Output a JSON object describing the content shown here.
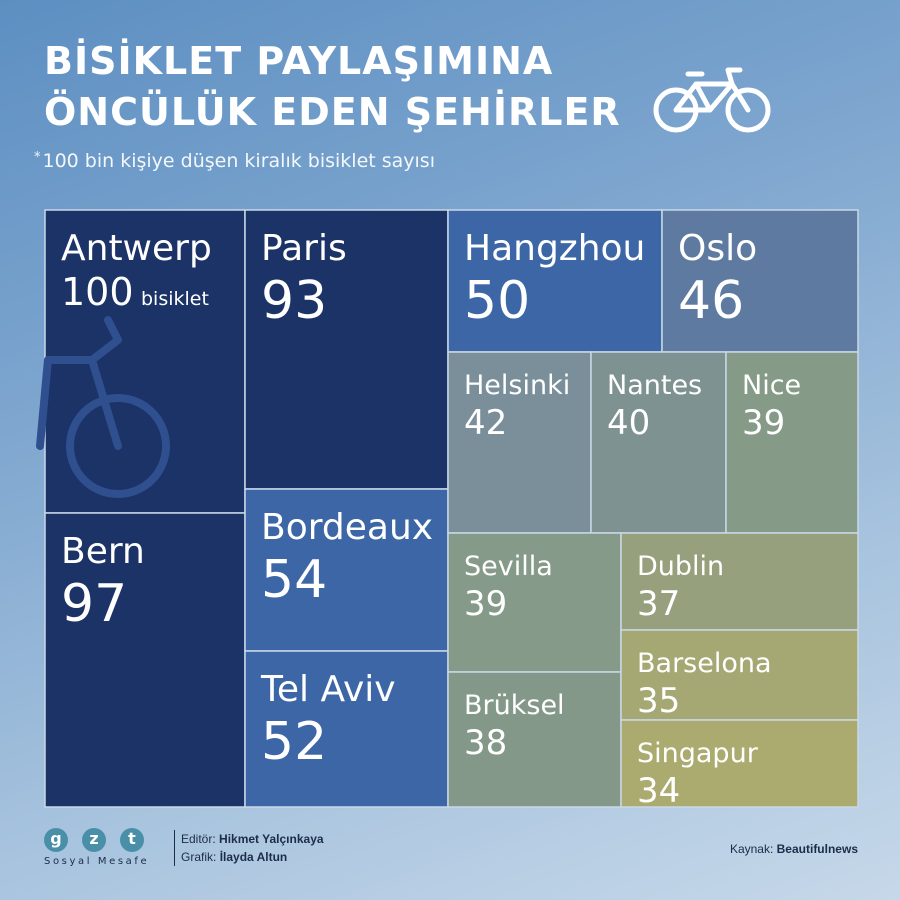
{
  "header": {
    "title_line1": "BİSİKLET PAYLAŞIMINA",
    "title_line2": "ÖNCÜLÜK EDEN ŞEHİRLER",
    "subtitle_mark": "*",
    "subtitle": "100 bin kişiye düşen kiralık bisiklet sayısı"
  },
  "chart_data": {
    "type": "treemap",
    "unit_label": "bisiklet",
    "items": [
      {
        "city": "Antwerp",
        "value": 100,
        "color": "#1b3366"
      },
      {
        "city": "Bern",
        "value": 97,
        "color": "#1b3366"
      },
      {
        "city": "Paris",
        "value": 93,
        "color": "#1b3366"
      },
      {
        "city": "Bordeaux",
        "value": 54,
        "color": "#3c66a6"
      },
      {
        "city": "Tel Aviv",
        "value": 52,
        "color": "#3c66a6"
      },
      {
        "city": "Hangzhou",
        "value": 50,
        "color": "#3c66a6"
      },
      {
        "city": "Oslo",
        "value": 46,
        "color": "#5f7aa0"
      },
      {
        "city": "Helsinki",
        "value": 42,
        "color": "#7a8f99"
      },
      {
        "city": "Nantes",
        "value": 40,
        "color": "#7f9292"
      },
      {
        "city": "Nice",
        "value": 39,
        "color": "#869a88"
      },
      {
        "city": "Sevilla",
        "value": 39,
        "color": "#859a88"
      },
      {
        "city": "Brüksel",
        "value": 38,
        "color": "#839888"
      },
      {
        "city": "Dublin",
        "value": 37,
        "color": "#97a07c"
      },
      {
        "city": "Barselona",
        "value": 35,
        "color": "#a5a873"
      },
      {
        "city": "Singapur",
        "value": 34,
        "color": "#abab70"
      }
    ]
  },
  "footer": {
    "logo_letters": [
      "g",
      "z",
      "t"
    ],
    "logo_text": "Sosyal Mesafe",
    "editor_label": "Editör:",
    "editor_name": "Hikmet Yalçınkaya",
    "graphic_label": "Grafik:",
    "graphic_name": "İlayda Altun",
    "source_label": "Kaynak:",
    "source_name": "Beautifulnews"
  }
}
